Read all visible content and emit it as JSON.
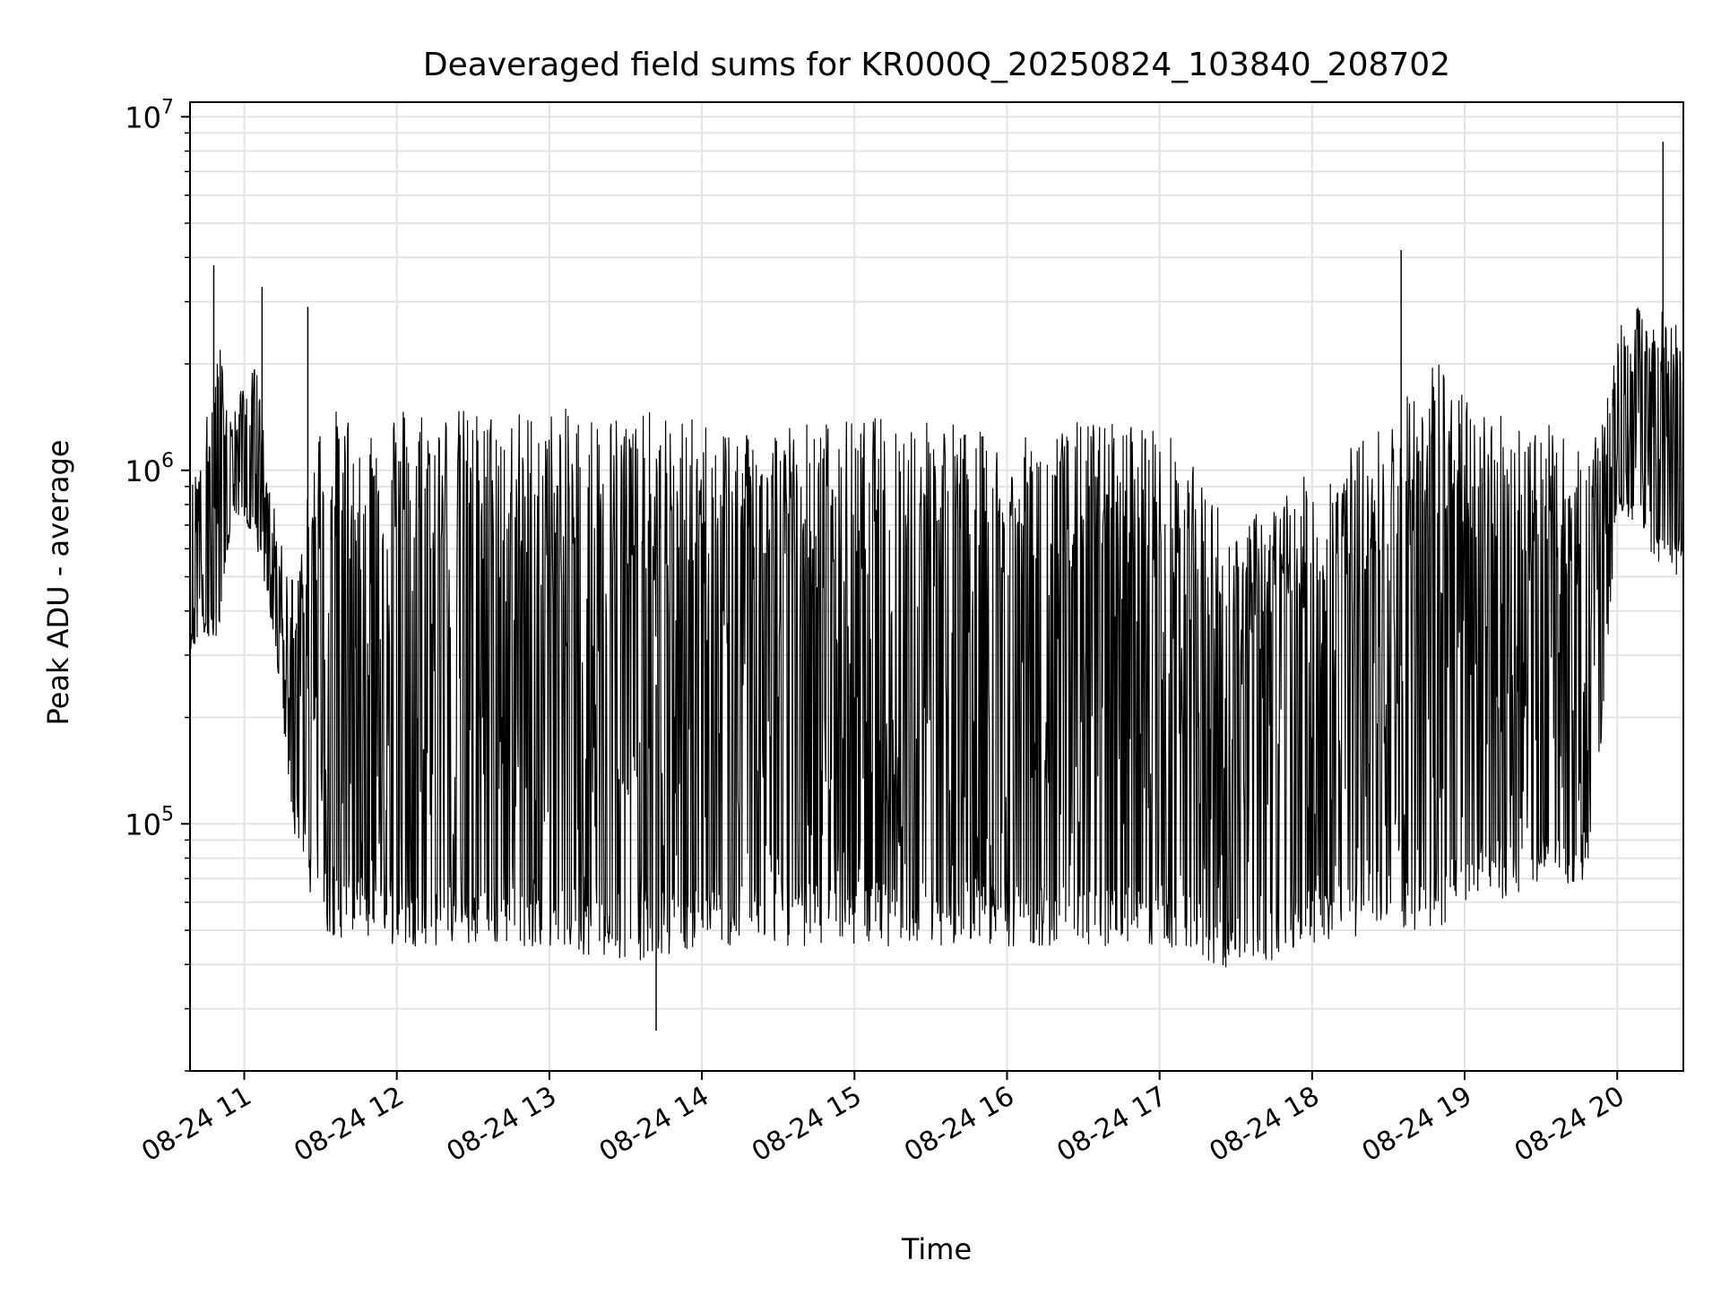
{
  "chart_data": {
    "type": "line",
    "title": "Deaveraged field sums for KR000Q_20250824_103840_208702",
    "xlabel": "Time",
    "ylabel": "Peak ADU - average",
    "x_axis": {
      "kind": "datetime",
      "range": [
        "2025-08-24 10:38:40",
        "2025-08-24 20:26:00"
      ],
      "tick_labels": [
        "08-24 11",
        "08-24 12",
        "08-24 13",
        "08-24 14",
        "08-24 15",
        "08-24 16",
        "08-24 17",
        "08-24 18",
        "08-24 19",
        "08-24 20"
      ],
      "ticks": [
        "2025-08-24 11:00",
        "2025-08-24 12:00",
        "2025-08-24 13:00",
        "2025-08-24 14:00",
        "2025-08-24 15:00",
        "2025-08-24 16:00",
        "2025-08-24 17:00",
        "2025-08-24 18:00",
        "2025-08-24 19:00",
        "2025-08-24 20:00"
      ]
    },
    "y_axis": {
      "scale": "log",
      "range": [
        20000,
        11000000
      ],
      "tick_labels": [
        {
          "base": "10",
          "exp": "5",
          "value": 100000
        },
        {
          "base": "10",
          "exp": "6",
          "value": 1000000
        },
        {
          "base": "10",
          "exp": "7",
          "value": 10000000
        }
      ]
    },
    "grid": true,
    "series": [
      {
        "color": "#000000",
        "description_points": "approximate upper (peak) and lower (trough) envelope of the densely oscillating series, in data units",
        "time": [
          "2025-08-24 10:39",
          "2025-08-24 10:45",
          "2025-08-24 10:50",
          "2025-08-24 10:55",
          "2025-08-24 11:00",
          "2025-08-24 11:05",
          "2025-08-24 11:10",
          "2025-08-24 11:15",
          "2025-08-24 11:20",
          "2025-08-24 11:30",
          "2025-08-24 11:45",
          "2025-08-24 12:00",
          "2025-08-24 12:30",
          "2025-08-24 13:00",
          "2025-08-24 13:30",
          "2025-08-24 14:00",
          "2025-08-24 14:30",
          "2025-08-24 15:00",
          "2025-08-24 15:30",
          "2025-08-24 16:00",
          "2025-08-24 16:30",
          "2025-08-24 17:00",
          "2025-08-24 17:30",
          "2025-08-24 18:00",
          "2025-08-24 18:30",
          "2025-08-24 18:50",
          "2025-08-24 19:00",
          "2025-08-24 19:30",
          "2025-08-24 19:50",
          "2025-08-24 20:00",
          "2025-08-24 20:10",
          "2025-08-24 20:20",
          "2025-08-24 20:26"
        ],
        "upper": [
          900000,
          1400000,
          2400000,
          1400000,
          1800000,
          2000000,
          900000,
          600000,
          500000,
          1500000,
          1500000,
          1600000,
          1500000,
          1500000,
          1500000,
          1400000,
          1400000,
          1400000,
          1500000,
          1200000,
          1400000,
          1400000,
          700000,
          1000000,
          1400000,
          2200000,
          1600000,
          1400000,
          1100000,
          2500000,
          3000000,
          2800000,
          2500000
        ],
        "lower": [
          300000,
          350000,
          300000,
          750000,
          700000,
          600000,
          400000,
          200000,
          90000,
          50000,
          45000,
          45000,
          45000,
          45000,
          40000,
          45000,
          45000,
          45000,
          45000,
          45000,
          45000,
          45000,
          38000,
          45000,
          50000,
          50000,
          60000,
          60000,
          70000,
          800000,
          600000,
          500000,
          500000
        ]
      }
    ],
    "spikes": [
      {
        "time": "2025-08-24 10:48",
        "value": 3800000
      },
      {
        "time": "2025-08-24 11:07",
        "value": 3300000
      },
      {
        "time": "2025-08-24 11:25",
        "value": 2900000
      },
      {
        "time": "2025-08-24 13:42",
        "value": 26000
      },
      {
        "time": "2025-08-24 18:35",
        "value": 4200000
      },
      {
        "time": "2025-08-24 20:18",
        "value": 8500000
      }
    ]
  }
}
